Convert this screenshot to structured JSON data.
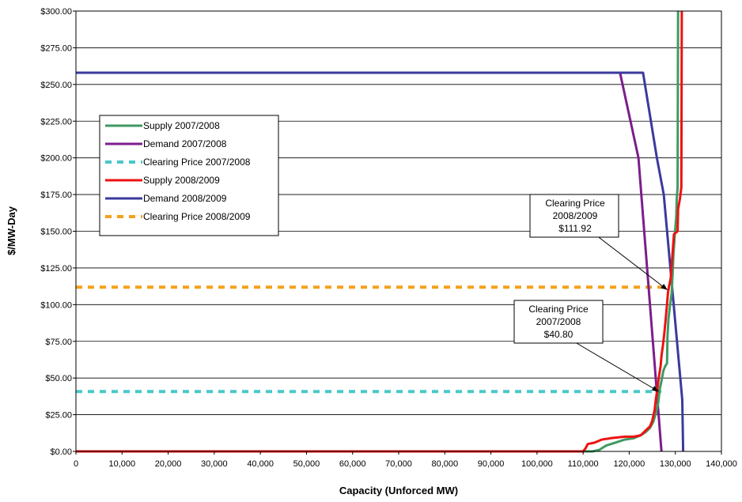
{
  "chart_data": {
    "type": "line",
    "title": "",
    "xlabel": "Capacity (Unforced MW)",
    "ylabel": "$/MW-Day",
    "xlim": [
      0,
      140000
    ],
    "ylim": [
      0,
      300
    ],
    "x_ticks": [
      "0",
      "10,000",
      "20,000",
      "30,000",
      "40,000",
      "50,000",
      "60,000",
      "70,000",
      "80,000",
      "90,000",
      "100,000",
      "110,000",
      "120,000",
      "130,000",
      "140,000"
    ],
    "y_ticks": [
      "$0.00",
      "$25.00",
      "$50.00",
      "$75.00",
      "$100.00",
      "$125.00",
      "$150.00",
      "$175.00",
      "$200.00",
      "$225.00",
      "$250.00",
      "$275.00",
      "$300.00"
    ],
    "grid": "horizontal",
    "legend_position": "left",
    "series": [
      {
        "name": "Supply 2007/2008",
        "color": "#3e9a63",
        "style": "solid",
        "points": [
          [
            0,
            0
          ],
          [
            112000,
            0
          ],
          [
            113500,
            1
          ],
          [
            115000,
            4
          ],
          [
            117000,
            6
          ],
          [
            119000,
            8
          ],
          [
            121000,
            9
          ],
          [
            122500,
            11
          ],
          [
            123500,
            13
          ],
          [
            124500,
            16
          ],
          [
            125200,
            20
          ],
          [
            125800,
            26
          ],
          [
            126300,
            33
          ],
          [
            126600,
            42
          ],
          [
            127000,
            48
          ],
          [
            127400,
            55
          ],
          [
            127800,
            58
          ],
          [
            128200,
            60
          ],
          [
            128300,
            78
          ],
          [
            128500,
            90
          ],
          [
            128800,
            98
          ],
          [
            129200,
            108
          ],
          [
            129400,
            120
          ],
          [
            129600,
            135
          ],
          [
            129900,
            148
          ],
          [
            130200,
            160
          ],
          [
            130300,
            172
          ],
          [
            130500,
            180
          ],
          [
            130600,
            300
          ]
        ]
      },
      {
        "name": "Demand 2007/2008",
        "color": "#7b1e8c",
        "style": "solid",
        "points": [
          [
            0,
            258
          ],
          [
            118000,
            258
          ],
          [
            122000,
            200
          ],
          [
            127000,
            0
          ]
        ]
      },
      {
        "name": "Clearing Price 2007/2008",
        "color": "#48c8c8",
        "style": "dashed",
        "points": [
          [
            0,
            40.8
          ],
          [
            127000,
            40.8
          ]
        ]
      },
      {
        "name": "Supply 2008/2009",
        "color": "#ee1111",
        "style": "solid",
        "points": [
          [
            0,
            0
          ],
          [
            110000,
            0
          ],
          [
            110500,
            2
          ],
          [
            111000,
            5
          ],
          [
            112500,
            6
          ],
          [
            114000,
            8
          ],
          [
            116000,
            9
          ],
          [
            119000,
            10
          ],
          [
            121000,
            10
          ],
          [
            122500,
            11
          ],
          [
            123500,
            14
          ],
          [
            124500,
            17
          ],
          [
            125000,
            21
          ],
          [
            125500,
            28
          ],
          [
            125800,
            36
          ],
          [
            126100,
            42
          ],
          [
            126400,
            50
          ],
          [
            126800,
            58
          ],
          [
            127000,
            65
          ],
          [
            127300,
            72
          ],
          [
            127600,
            80
          ],
          [
            127900,
            90
          ],
          [
            128200,
            100
          ],
          [
            128400,
            108
          ],
          [
            128600,
            112
          ],
          [
            129000,
            118
          ],
          [
            129400,
            135
          ],
          [
            129700,
            148
          ],
          [
            130500,
            150
          ],
          [
            130600,
            165
          ],
          [
            131000,
            172
          ],
          [
            131300,
            180
          ],
          [
            131400,
            300
          ]
        ]
      },
      {
        "name": "Demand 2008/2009",
        "color": "#3a3a9e",
        "style": "solid",
        "points": [
          [
            0,
            258
          ],
          [
            123000,
            258
          ],
          [
            126000,
            200
          ],
          [
            127500,
            175
          ],
          [
            131500,
            35
          ],
          [
            131700,
            0
          ]
        ]
      },
      {
        "name": "Clearing Price 2008/2009",
        "color": "#f5a01a",
        "style": "dashed",
        "points": [
          [
            0,
            111.92
          ],
          [
            128500,
            111.92
          ]
        ]
      }
    ],
    "annotations": [
      {
        "key": "cp2008",
        "lines": [
          "Clearing Price",
          "2008/2009",
          "$111.92"
        ],
        "target": [
          128300,
          110
        ]
      },
      {
        "key": "cp2007",
        "lines": [
          "Clearing Price",
          "2007/2008",
          "$40.80"
        ],
        "target": [
          126400,
          40.8
        ]
      }
    ]
  }
}
